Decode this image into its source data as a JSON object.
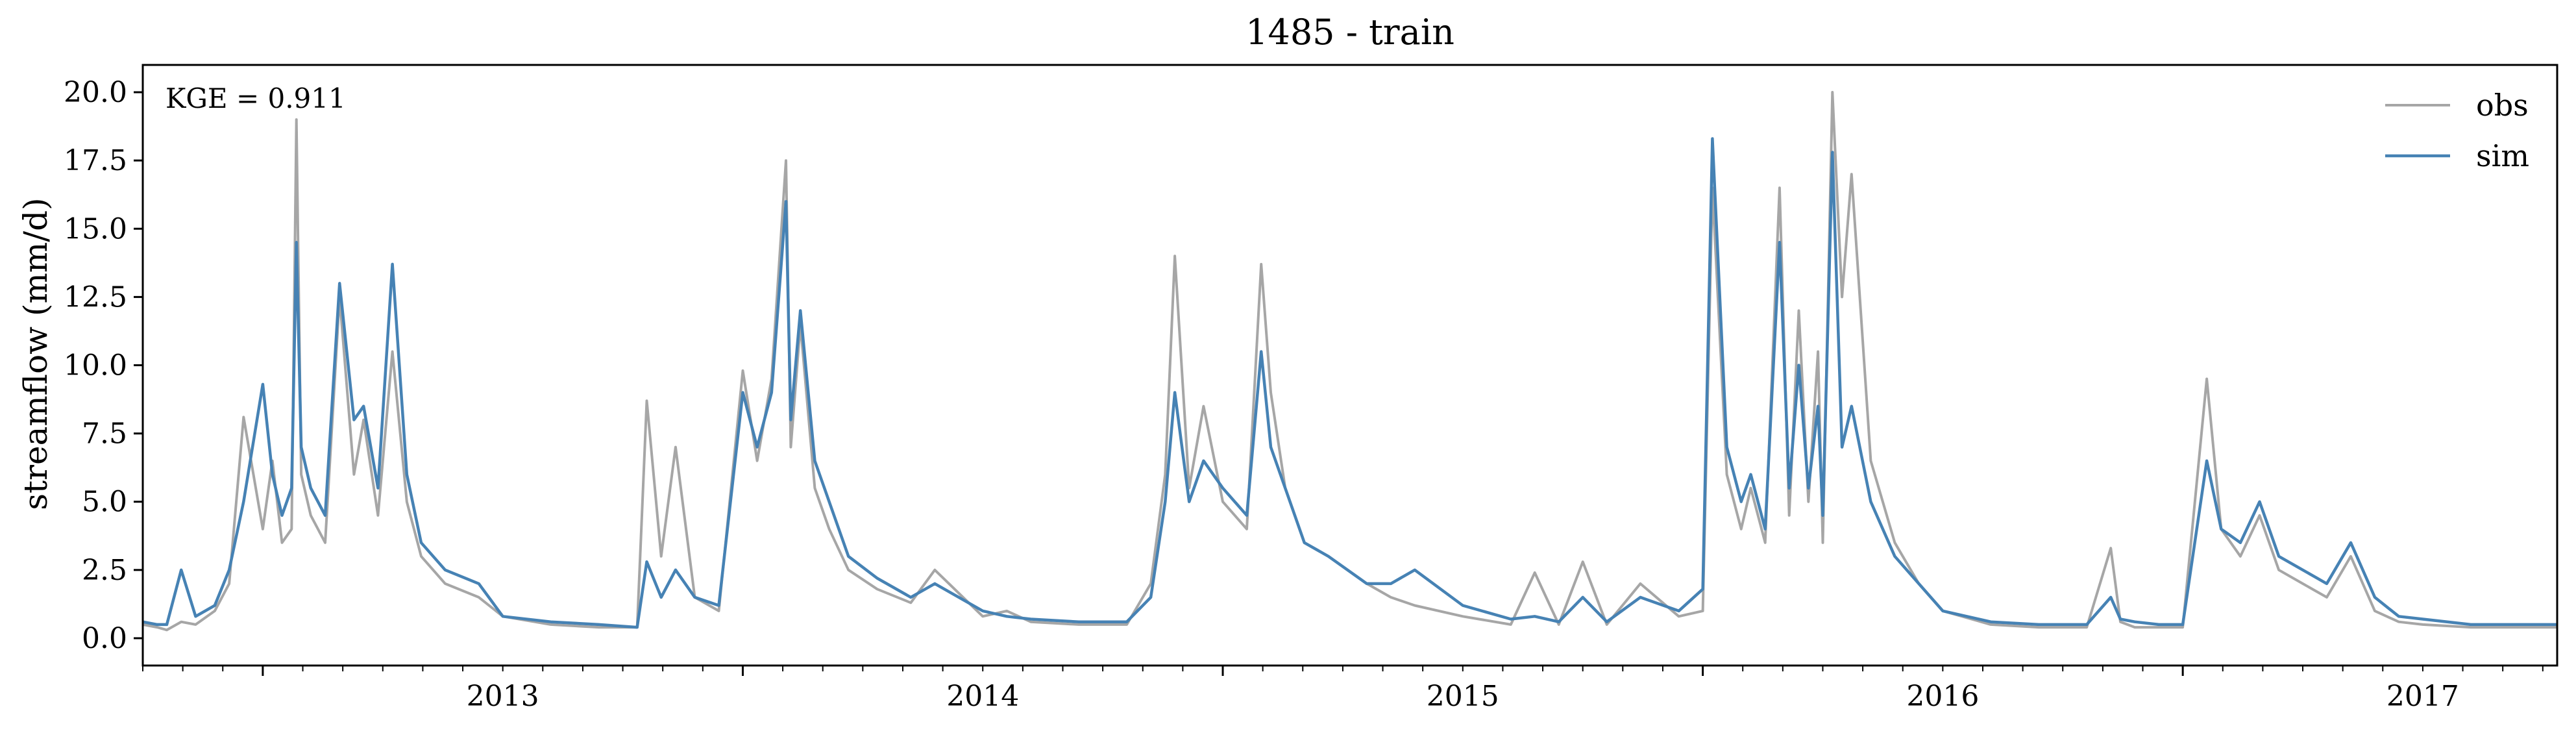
{
  "chart_data": {
    "type": "line",
    "title": "1485 - train",
    "xlabel": "",
    "ylabel": "streamflow (mm/d)",
    "annotation": "KGE = 0.911",
    "xlim": [
      2012.75,
      2017.78
    ],
    "ylim": [
      -1.0,
      21.0
    ],
    "year_ticks": [
      2013,
      2014,
      2015,
      2016,
      2017
    ],
    "year_tick_labels": [
      "2013",
      "2014",
      "2015",
      "2016",
      "2017"
    ],
    "y_ticks": [
      0,
      2.5,
      5,
      7.5,
      10,
      12.5,
      15,
      17.5,
      20
    ],
    "y_tick_labels": [
      "0.0",
      "2.5",
      "5.0",
      "7.5",
      "10.0",
      "12.5",
      "15.0",
      "17.5",
      "20.0"
    ],
    "legend": {
      "position": "top-right",
      "entries": [
        "obs",
        "sim"
      ]
    },
    "series": [
      {
        "name": "obs",
        "color": "#a6a6a6",
        "x": [
          2012.75,
          2012.78,
          2012.8,
          2012.83,
          2012.86,
          2012.9,
          2012.93,
          2012.96,
          2013.0,
          2013.02,
          2013.04,
          2013.06,
          2013.07,
          2013.08,
          2013.1,
          2013.13,
          2013.16,
          2013.19,
          2013.21,
          2013.24,
          2013.27,
          2013.3,
          2013.33,
          2013.38,
          2013.45,
          2013.5,
          2013.6,
          2013.7,
          2013.78,
          2013.8,
          2013.83,
          2013.86,
          2013.9,
          2013.95,
          2014.0,
          2014.03,
          2014.06,
          2014.09,
          2014.1,
          2014.12,
          2014.15,
          2014.18,
          2014.22,
          2014.28,
          2014.35,
          2014.4,
          2014.5,
          2014.55,
          2014.6,
          2014.7,
          2014.8,
          2014.85,
          2014.88,
          2014.9,
          2014.93,
          2014.96,
          2015.0,
          2015.05,
          2015.08,
          2015.1,
          2015.13,
          2015.17,
          2015.22,
          2015.3,
          2015.35,
          2015.4,
          2015.5,
          2015.6,
          2015.65,
          2015.7,
          2015.75,
          2015.8,
          2015.87,
          2015.95,
          2016.0,
          2016.02,
          2016.05,
          2016.08,
          2016.1,
          2016.13,
          2016.16,
          2016.18,
          2016.2,
          2016.22,
          2016.24,
          2016.25,
          2016.27,
          2016.29,
          2016.31,
          2016.35,
          2016.4,
          2016.45,
          2016.5,
          2016.6,
          2016.7,
          2016.8,
          2016.85,
          2016.87,
          2016.9,
          2016.95,
          2017.0,
          2017.05,
          2017.08,
          2017.12,
          2017.16,
          2017.2,
          2017.25,
          2017.3,
          2017.35,
          2017.4,
          2017.45,
          2017.5,
          2017.6,
          2017.7,
          2017.78
        ],
        "y": [
          0.5,
          0.4,
          0.3,
          0.6,
          0.5,
          1.0,
          2.0,
          8.1,
          4.0,
          6.5,
          3.5,
          4.0,
          19.0,
          6.0,
          4.5,
          3.5,
          12.5,
          6.0,
          8.0,
          4.5,
          10.5,
          5.0,
          3.0,
          2.0,
          1.5,
          0.8,
          0.5,
          0.4,
          0.4,
          8.7,
          3.0,
          7.0,
          1.5,
          1.0,
          9.8,
          6.5,
          9.5,
          17.5,
          7.0,
          11.5,
          5.5,
          4.0,
          2.5,
          1.8,
          1.3,
          2.5,
          0.8,
          1.0,
          0.6,
          0.5,
          0.5,
          2.0,
          6.0,
          14.0,
          5.5,
          8.5,
          5.0,
          4.0,
          13.7,
          9.0,
          5.5,
          3.5,
          3.0,
          2.0,
          1.5,
          1.2,
          0.8,
          0.5,
          2.4,
          0.5,
          2.8,
          0.5,
          2.0,
          0.8,
          1.0,
          16.5,
          6.0,
          4.0,
          5.5,
          3.5,
          16.5,
          4.5,
          12.0,
          5.0,
          10.5,
          3.5,
          20.0,
          12.5,
          17.0,
          6.5,
          3.5,
          2.0,
          1.0,
          0.5,
          0.4,
          0.4,
          3.3,
          0.6,
          0.4,
          0.4,
          0.4,
          9.5,
          4.0,
          3.0,
          4.5,
          2.5,
          2.0,
          1.5,
          3.0,
          1.0,
          0.6,
          0.5,
          0.4,
          0.4,
          0.4
        ]
      },
      {
        "name": "sim",
        "color": "#4682b4",
        "x": [
          2012.75,
          2012.78,
          2012.8,
          2012.83,
          2012.86,
          2012.9,
          2012.93,
          2012.96,
          2013.0,
          2013.02,
          2013.04,
          2013.06,
          2013.07,
          2013.08,
          2013.1,
          2013.13,
          2013.16,
          2013.19,
          2013.21,
          2013.24,
          2013.27,
          2013.3,
          2013.33,
          2013.38,
          2013.45,
          2013.5,
          2013.6,
          2013.7,
          2013.78,
          2013.8,
          2013.83,
          2013.86,
          2013.9,
          2013.95,
          2014.0,
          2014.03,
          2014.06,
          2014.09,
          2014.1,
          2014.12,
          2014.15,
          2014.18,
          2014.22,
          2014.28,
          2014.35,
          2014.4,
          2014.5,
          2014.55,
          2014.6,
          2014.7,
          2014.8,
          2014.85,
          2014.88,
          2014.9,
          2014.93,
          2014.96,
          2015.0,
          2015.05,
          2015.08,
          2015.1,
          2015.13,
          2015.17,
          2015.22,
          2015.3,
          2015.35,
          2015.4,
          2015.5,
          2015.6,
          2015.65,
          2015.7,
          2015.75,
          2015.8,
          2015.87,
          2015.95,
          2016.0,
          2016.02,
          2016.05,
          2016.08,
          2016.1,
          2016.13,
          2016.16,
          2016.18,
          2016.2,
          2016.22,
          2016.24,
          2016.25,
          2016.27,
          2016.29,
          2016.31,
          2016.35,
          2016.4,
          2016.45,
          2016.5,
          2016.6,
          2016.7,
          2016.8,
          2016.85,
          2016.87,
          2016.9,
          2016.95,
          2017.0,
          2017.05,
          2017.08,
          2017.12,
          2017.16,
          2017.2,
          2017.25,
          2017.3,
          2017.35,
          2017.4,
          2017.45,
          2017.5,
          2017.6,
          2017.7,
          2017.78
        ],
        "y": [
          0.6,
          0.5,
          0.5,
          2.5,
          0.8,
          1.2,
          2.5,
          5.0,
          9.3,
          6.0,
          4.5,
          5.5,
          14.5,
          7.0,
          5.5,
          4.5,
          13.0,
          8.0,
          8.5,
          5.5,
          13.7,
          6.0,
          3.5,
          2.5,
          2.0,
          0.8,
          0.6,
          0.5,
          0.4,
          2.8,
          1.5,
          2.5,
          1.5,
          1.2,
          9.0,
          7.0,
          9.0,
          16.0,
          8.0,
          12.0,
          6.5,
          5.0,
          3.0,
          2.2,
          1.5,
          2.0,
          1.0,
          0.8,
          0.7,
          0.6,
          0.6,
          1.5,
          5.0,
          9.0,
          5.0,
          6.5,
          5.5,
          4.5,
          10.5,
          7.0,
          5.5,
          3.5,
          3.0,
          2.0,
          2.0,
          2.5,
          1.2,
          0.7,
          0.8,
          0.6,
          1.5,
          0.6,
          1.5,
          1.0,
          1.8,
          18.3,
          7.0,
          5.0,
          6.0,
          4.0,
          14.5,
          5.5,
          10.0,
          5.5,
          8.5,
          4.5,
          17.8,
          7.0,
          8.5,
          5.0,
          3.0,
          2.0,
          1.0,
          0.6,
          0.5,
          0.5,
          1.5,
          0.7,
          0.6,
          0.5,
          0.5,
          6.5,
          4.0,
          3.5,
          5.0,
          3.0,
          2.5,
          2.0,
          3.5,
          1.5,
          0.8,
          0.7,
          0.5,
          0.5,
          0.5
        ]
      }
    ]
  }
}
